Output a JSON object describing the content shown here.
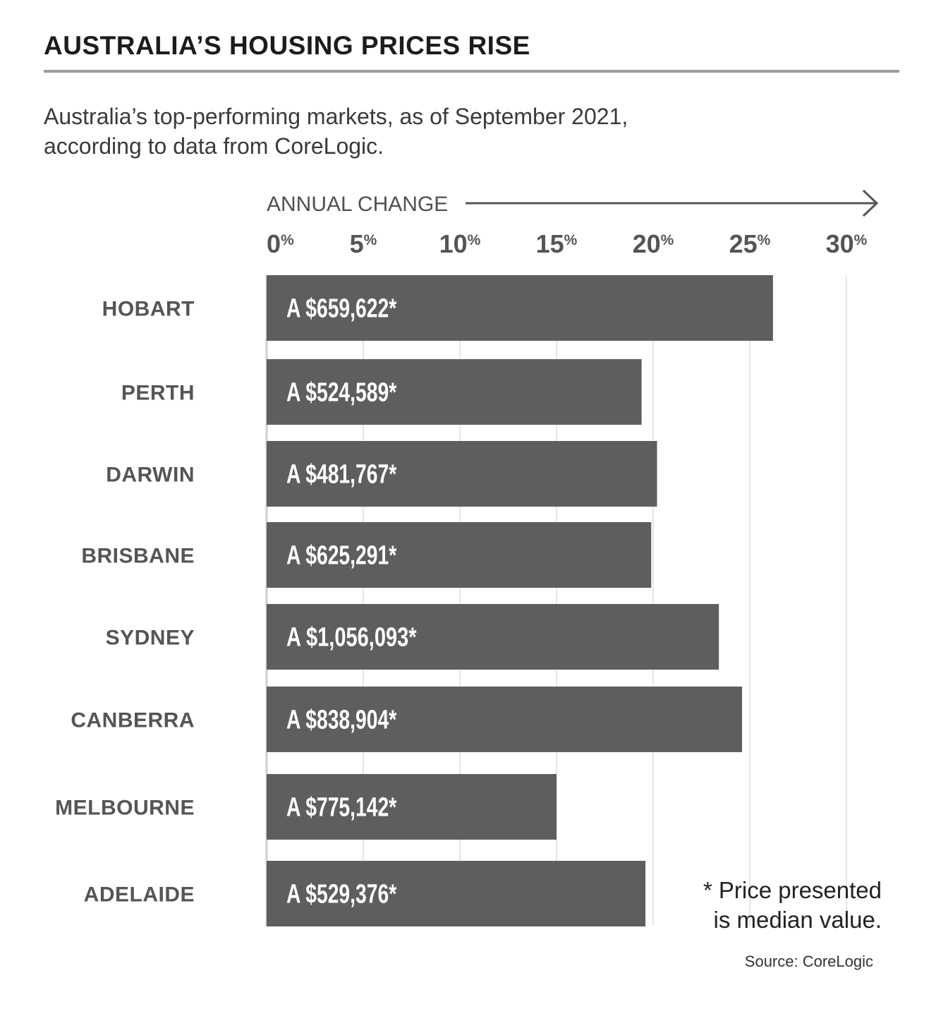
{
  "title": "AUSTRALIA’S HOUSING PRICES RISE",
  "subtitle_line1": "Australia’s top-performing markets, as of September 2021,",
  "subtitle_line2": "according to data from CoreLogic.",
  "footnote_line1": "* Price presented",
  "footnote_line2": "is median value.",
  "source": "Source: CoreLogic",
  "colors": {
    "bar": "#5e5e5e",
    "grid": "#e6e6e6",
    "axis": "#555555",
    "text": "#222222"
  },
  "chart_data": {
    "type": "bar",
    "orientation": "horizontal",
    "title": "AUSTRALIA’S HOUSING PRICES RISE",
    "xlabel": "ANNUAL CHANGE",
    "xlim": [
      0,
      30
    ],
    "xticks": [
      0,
      5,
      10,
      15,
      20,
      25,
      30
    ],
    "tick_suffix": "%",
    "grid": true,
    "categories": [
      "HOBART",
      "PERTH",
      "DARWIN",
      "BRISBANE",
      "SYDNEY",
      "CANBERRA",
      "MELBOURNE",
      "ADELAIDE"
    ],
    "values": [
      26.2,
      19.4,
      20.2,
      19.9,
      23.4,
      24.6,
      15.0,
      19.6
    ],
    "bar_labels": [
      "A $659,622*",
      "A $524,589*",
      "A $481,767*",
      "A $625,291*",
      "A $1,056,093*",
      "A $838,904*",
      "A $775,142*",
      "A $529,376*"
    ]
  }
}
